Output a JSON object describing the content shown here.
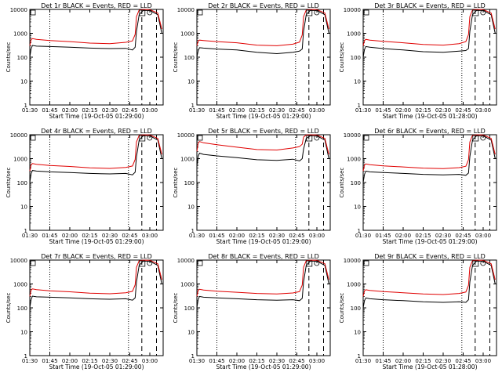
{
  "figure": {
    "xtick_labels": [
      "01:30",
      "01:45",
      "02:00",
      "02:15",
      "02:30",
      "02:45",
      "03:00"
    ],
    "ytick_labels": [
      "1",
      "10",
      "100",
      "1000",
      "10000"
    ],
    "colors": {
      "events": "#000000",
      "lld": "#e00000",
      "axes": "#000000",
      "background": "#ffffff"
    }
  },
  "chart_data": [
    {
      "type": "line",
      "title": "Det 1r  BLACK = Events, RED = LLD",
      "xlabel": "Start Time (19-Oct-05 01:29:00)",
      "ylabel": "Counts/sec",
      "yscale": "log",
      "ylim": [
        1,
        10000
      ],
      "xlim": [
        "01:30",
        "03:10"
      ],
      "dotted_markers": [
        "01:45",
        "02:44"
      ],
      "dashed_markers": [
        "02:54",
        "03:05"
      ],
      "series": [
        {
          "name": "Events",
          "x": [
            "01:30",
            "01:31",
            "01:32",
            "01:35",
            "01:45",
            "02:00",
            "02:15",
            "02:30",
            "02:42",
            "02:47",
            "02:49",
            "02:50",
            "02:52",
            "02:55",
            "03:00",
            "03:06",
            "03:09"
          ],
          "values": [
            100,
            230,
            310,
            290,
            280,
            260,
            240,
            230,
            235,
            200,
            260,
            1200,
            6000,
            9000,
            9000,
            6000,
            1000
          ]
        },
        {
          "name": "LLD",
          "x": [
            "01:30",
            "01:31",
            "01:32",
            "01:35",
            "01:45",
            "02:00",
            "02:15",
            "02:30",
            "02:42",
            "02:47",
            "02:49",
            "02:50",
            "02:52",
            "02:55",
            "03:00",
            "03:06",
            "03:09"
          ],
          "values": [
            300,
            550,
            600,
            560,
            500,
            450,
            390,
            370,
            420,
            480,
            900,
            5000,
            9500,
            9900,
            9800,
            7000,
            1500
          ]
        }
      ]
    },
    {
      "type": "line",
      "title": "Det 2r  BLACK = Events, RED = LLD",
      "xlabel": "Start Time (19-Oct-05 01:29:00)",
      "ylabel": "Counts/sec",
      "yscale": "log",
      "ylim": [
        1,
        10000
      ],
      "xlim": [
        "01:30",
        "03:10"
      ],
      "dotted_markers": [
        "01:45",
        "02:44"
      ],
      "dashed_markers": [
        "02:54",
        "03:05"
      ],
      "series": [
        {
          "name": "Events",
          "x": [
            "01:30",
            "01:31",
            "01:32",
            "01:35",
            "01:45",
            "02:00",
            "02:15",
            "02:30",
            "02:42",
            "02:47",
            "02:49",
            "02:50",
            "02:52",
            "02:55",
            "03:00",
            "03:06",
            "03:09"
          ],
          "values": [
            100,
            190,
            250,
            240,
            220,
            200,
            160,
            140,
            160,
            180,
            220,
            1200,
            6000,
            9000,
            9000,
            6000,
            1000
          ]
        },
        {
          "name": "LLD",
          "x": [
            "01:30",
            "01:31",
            "01:32",
            "01:35",
            "01:45",
            "02:00",
            "02:15",
            "02:30",
            "02:42",
            "02:47",
            "02:49",
            "02:50",
            "02:52",
            "02:55",
            "03:00",
            "03:06",
            "03:09"
          ],
          "values": [
            300,
            480,
            520,
            500,
            450,
            400,
            320,
            300,
            350,
            430,
            850,
            5000,
            9500,
            9900,
            9800,
            7000,
            1500
          ]
        }
      ]
    },
    {
      "type": "line",
      "title": "Det 3r  BLACK = Events, RED = LLD",
      "xlabel": "Start Time (19-Oct-05 01:28:00)",
      "ylabel": "Counts/sec",
      "yscale": "log",
      "ylim": [
        1,
        10000
      ],
      "xlim": [
        "01:30",
        "03:10"
      ],
      "dotted_markers": [
        "01:45",
        "02:44"
      ],
      "dashed_markers": [
        "02:54",
        "03:05"
      ],
      "series": [
        {
          "name": "Events",
          "x": [
            "01:30",
            "01:31",
            "01:32",
            "01:35",
            "01:45",
            "02:00",
            "02:15",
            "02:30",
            "02:42",
            "02:47",
            "02:49",
            "02:50",
            "02:52",
            "02:55",
            "03:00",
            "03:06",
            "03:09"
          ],
          "values": [
            100,
            210,
            280,
            260,
            230,
            200,
            170,
            160,
            180,
            190,
            230,
            1200,
            6000,
            9000,
            9000,
            6000,
            1000
          ]
        },
        {
          "name": "LLD",
          "x": [
            "01:30",
            "01:31",
            "01:32",
            "01:35",
            "01:45",
            "02:00",
            "02:15",
            "02:30",
            "02:42",
            "02:47",
            "02:49",
            "02:50",
            "02:52",
            "02:55",
            "03:00",
            "03:06",
            "03:09"
          ],
          "values": [
            300,
            500,
            560,
            520,
            460,
            400,
            340,
            320,
            370,
            450,
            880,
            5000,
            9500,
            9900,
            9800,
            7000,
            1500
          ]
        }
      ]
    },
    {
      "type": "line",
      "title": "Det 4r  BLACK = Events, RED = LLD",
      "xlabel": "Start Time (19-Oct-05 01:29:00)",
      "ylabel": "Counts/sec",
      "yscale": "log",
      "ylim": [
        1,
        10000
      ],
      "xlim": [
        "01:30",
        "03:10"
      ],
      "dotted_markers": [
        "01:45",
        "02:44"
      ],
      "dashed_markers": [
        "02:54",
        "03:05"
      ],
      "series": [
        {
          "name": "Events",
          "x": [
            "01:30",
            "01:31",
            "01:32",
            "01:35",
            "01:45",
            "02:00",
            "02:15",
            "02:30",
            "02:42",
            "02:47",
            "02:49",
            "02:50",
            "02:52",
            "02:55",
            "03:00",
            "03:06",
            "03:09"
          ],
          "values": [
            100,
            240,
            320,
            300,
            280,
            260,
            240,
            230,
            240,
            210,
            270,
            1200,
            6000,
            9000,
            9000,
            6000,
            1000
          ]
        },
        {
          "name": "LLD",
          "x": [
            "01:30",
            "01:31",
            "01:32",
            "01:35",
            "01:45",
            "02:00",
            "02:15",
            "02:30",
            "02:42",
            "02:47",
            "02:49",
            "02:50",
            "02:52",
            "02:55",
            "03:00",
            "03:06",
            "03:09"
          ],
          "values": [
            300,
            560,
            620,
            580,
            520,
            470,
            410,
            390,
            430,
            490,
            920,
            5000,
            9500,
            9900,
            9800,
            7000,
            1500
          ]
        }
      ]
    },
    {
      "type": "line",
      "title": "Det 5r  BLACK = Events, RED = LLD",
      "xlabel": "Start Time (19-Oct-05 01:29:00)",
      "ylabel": "Counts/sec",
      "yscale": "log",
      "ylim": [
        1,
        10000
      ],
      "xlim": [
        "01:30",
        "03:10"
      ],
      "dotted_markers": [
        "01:45",
        "02:44"
      ],
      "dashed_markers": [
        "02:54",
        "03:05"
      ],
      "series": [
        {
          "name": "Events",
          "x": [
            "01:30",
            "01:31",
            "01:32",
            "01:35",
            "01:45",
            "02:00",
            "02:15",
            "02:30",
            "02:42",
            "02:47",
            "02:49",
            "02:50",
            "02:52",
            "02:55",
            "03:00",
            "03:06",
            "03:09"
          ],
          "values": [
            500,
            1300,
            1700,
            1500,
            1300,
            1100,
            900,
            850,
            950,
            800,
            1000,
            2500,
            7000,
            9000,
            9000,
            6000,
            1000
          ]
        },
        {
          "name": "LLD",
          "x": [
            "01:30",
            "01:31",
            "01:32",
            "01:35",
            "01:45",
            "02:00",
            "02:15",
            "02:30",
            "02:42",
            "02:47",
            "02:49",
            "02:50",
            "02:52",
            "02:55",
            "03:00",
            "03:06",
            "03:09"
          ],
          "values": [
            2000,
            4500,
            5200,
            4600,
            3800,
            3000,
            2400,
            2300,
            2800,
            3200,
            4000,
            8000,
            9800,
            9900,
            9800,
            7000,
            1500
          ]
        }
      ]
    },
    {
      "type": "line",
      "title": "Det 6r  BLACK = Events, RED = LLD",
      "xlabel": "Start Time (19-Oct-05 01:29:00)",
      "ylabel": "Counts/sec",
      "yscale": "log",
      "ylim": [
        1,
        10000
      ],
      "xlim": [
        "01:30",
        "03:10"
      ],
      "dotted_markers": [
        "01:45",
        "02:44"
      ],
      "dashed_markers": [
        "02:54",
        "03:05"
      ],
      "series": [
        {
          "name": "Events",
          "x": [
            "01:30",
            "01:31",
            "01:32",
            "01:35",
            "01:45",
            "02:00",
            "02:15",
            "02:30",
            "02:42",
            "02:47",
            "02:49",
            "02:50",
            "02:52",
            "02:55",
            "03:00",
            "03:06",
            "03:09"
          ],
          "values": [
            100,
            220,
            300,
            280,
            260,
            240,
            220,
            210,
            220,
            200,
            250,
            1200,
            6000,
            9000,
            9000,
            6000,
            1000
          ]
        },
        {
          "name": "LLD",
          "x": [
            "01:30",
            "01:31",
            "01:32",
            "01:35",
            "01:45",
            "02:00",
            "02:15",
            "02:30",
            "02:42",
            "02:47",
            "02:49",
            "02:50",
            "02:52",
            "02:55",
            "03:00",
            "03:06",
            "03:09"
          ],
          "values": [
            300,
            540,
            600,
            560,
            500,
            450,
            400,
            380,
            420,
            480,
            900,
            5000,
            9500,
            9900,
            9800,
            7000,
            1500
          ]
        }
      ]
    },
    {
      "type": "line",
      "title": "Det 7r  BLACK = Events, RED = LLD",
      "xlabel": "Start Time (19-Oct-05 01:29:00)",
      "ylabel": "Counts/sec",
      "yscale": "log",
      "ylim": [
        1,
        10000
      ],
      "xlim": [
        "01:30",
        "03:10"
      ],
      "dotted_markers": [
        "01:45",
        "02:44"
      ],
      "dashed_markers": [
        "02:54",
        "03:05"
      ],
      "series": [
        {
          "name": "Events",
          "x": [
            "01:30",
            "01:31",
            "01:32",
            "01:35",
            "01:45",
            "02:00",
            "02:15",
            "02:30",
            "02:42",
            "02:47",
            "02:49",
            "02:50",
            "02:52",
            "02:55",
            "03:00",
            "03:06",
            "03:09"
          ],
          "values": [
            100,
            230,
            310,
            290,
            280,
            260,
            240,
            230,
            240,
            210,
            260,
            1200,
            6000,
            9000,
            9000,
            6000,
            1000
          ]
        },
        {
          "name": "LLD",
          "x": [
            "01:30",
            "01:31",
            "01:32",
            "01:35",
            "01:45",
            "02:00",
            "02:15",
            "02:30",
            "02:42",
            "02:47",
            "02:49",
            "02:50",
            "02:52",
            "02:55",
            "03:00",
            "03:06",
            "03:09"
          ],
          "values": [
            300,
            560,
            620,
            580,
            520,
            470,
            410,
            390,
            430,
            490,
            920,
            5000,
            9500,
            9900,
            9800,
            7000,
            1500
          ]
        }
      ]
    },
    {
      "type": "line",
      "title": "Det 8r  BLACK = Events, RED = LLD",
      "xlabel": "Start Time (19-Oct-05 01:29:00)",
      "ylabel": "Counts/sec",
      "yscale": "log",
      "ylim": [
        1,
        10000
      ],
      "xlim": [
        "01:30",
        "03:10"
      ],
      "dotted_markers": [
        "01:45",
        "02:44"
      ],
      "dashed_markers": [
        "02:54",
        "03:05"
      ],
      "series": [
        {
          "name": "Events",
          "x": [
            "01:30",
            "01:31",
            "01:32",
            "01:35",
            "01:45",
            "02:00",
            "02:15",
            "02:30",
            "02:42",
            "02:47",
            "02:49",
            "02:50",
            "02:52",
            "02:55",
            "03:00",
            "03:06",
            "03:09"
          ],
          "values": [
            100,
            230,
            300,
            280,
            260,
            240,
            220,
            210,
            220,
            200,
            250,
            1200,
            6000,
            9000,
            9000,
            6000,
            1000
          ]
        },
        {
          "name": "LLD",
          "x": [
            "01:30",
            "01:31",
            "01:32",
            "01:35",
            "01:45",
            "02:00",
            "02:15",
            "02:30",
            "02:42",
            "02:47",
            "02:49",
            "02:50",
            "02:52",
            "02:55",
            "03:00",
            "03:06",
            "03:09"
          ],
          "values": [
            300,
            550,
            600,
            560,
            500,
            450,
            400,
            380,
            420,
            480,
            900,
            5000,
            9500,
            9900,
            9800,
            7000,
            1500
          ]
        }
      ]
    },
    {
      "type": "line",
      "title": "Det 9r  BLACK = Events, RED = LLD",
      "xlabel": "Start Time (19-Oct-05 01:28:00)",
      "ylabel": "Counts/sec",
      "yscale": "log",
      "ylim": [
        1,
        10000
      ],
      "xlim": [
        "01:30",
        "03:10"
      ],
      "dotted_markers": [
        "01:45",
        "02:44"
      ],
      "dashed_markers": [
        "02:54",
        "03:05"
      ],
      "series": [
        {
          "name": "Events",
          "x": [
            "01:30",
            "01:31",
            "01:32",
            "01:35",
            "01:45",
            "02:00",
            "02:15",
            "02:30",
            "02:42",
            "02:47",
            "02:49",
            "02:50",
            "02:52",
            "02:55",
            "03:00",
            "03:06",
            "03:09"
          ],
          "values": [
            100,
            200,
            260,
            240,
            220,
            200,
            180,
            170,
            180,
            170,
            220,
            1200,
            6000,
            9000,
            9000,
            6000,
            1000
          ]
        },
        {
          "name": "LLD",
          "x": [
            "01:30",
            "01:31",
            "01:32",
            "01:35",
            "01:45",
            "02:00",
            "02:15",
            "02:30",
            "02:42",
            "02:47",
            "02:49",
            "02:50",
            "02:52",
            "02:55",
            "03:00",
            "03:06",
            "03:09"
          ],
          "values": [
            300,
            520,
            570,
            540,
            480,
            430,
            380,
            360,
            400,
            460,
            880,
            5000,
            9500,
            9900,
            9800,
            7000,
            1500
          ]
        }
      ]
    }
  ]
}
